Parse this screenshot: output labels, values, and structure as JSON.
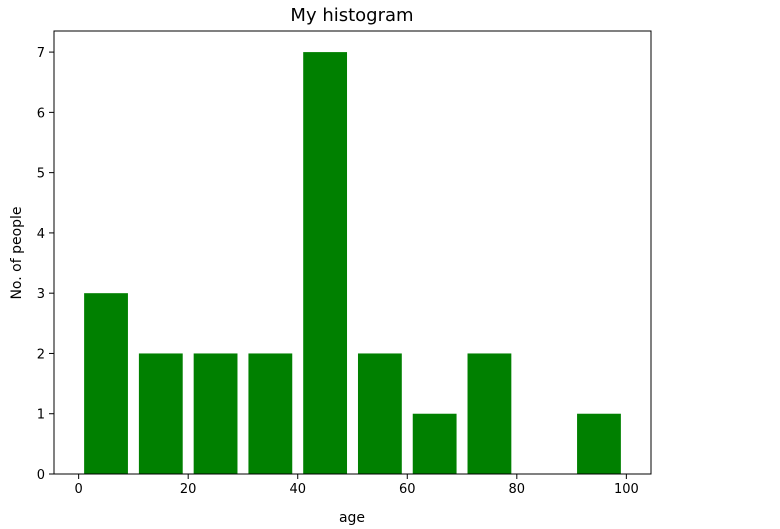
{
  "chart_data": {
    "type": "bar",
    "title": "My histogram",
    "xlabel": "age",
    "ylabel": "No. of people",
    "bar_color": "#008000",
    "xlim": [
      -4.5,
      104.5
    ],
    "ylim": [
      0,
      7.35
    ],
    "xticks": [
      0,
      20,
      40,
      60,
      80,
      100
    ],
    "yticks": [
      0,
      1,
      2,
      3,
      4,
      5,
      6,
      7
    ],
    "grid": false,
    "bars": [
      {
        "x_start": 1,
        "x_end": 9,
        "value": 3
      },
      {
        "x_start": 11,
        "x_end": 19,
        "value": 2
      },
      {
        "x_start": 21,
        "x_end": 29,
        "value": 2
      },
      {
        "x_start": 31,
        "x_end": 39,
        "value": 2
      },
      {
        "x_start": 41,
        "x_end": 49,
        "value": 7
      },
      {
        "x_start": 51,
        "x_end": 59,
        "value": 2
      },
      {
        "x_start": 61,
        "x_end": 69,
        "value": 1
      },
      {
        "x_start": 71,
        "x_end": 79,
        "value": 2
      },
      {
        "x_start": 81,
        "x_end": 89,
        "value": 0
      },
      {
        "x_start": 91,
        "x_end": 99,
        "value": 1
      }
    ]
  }
}
